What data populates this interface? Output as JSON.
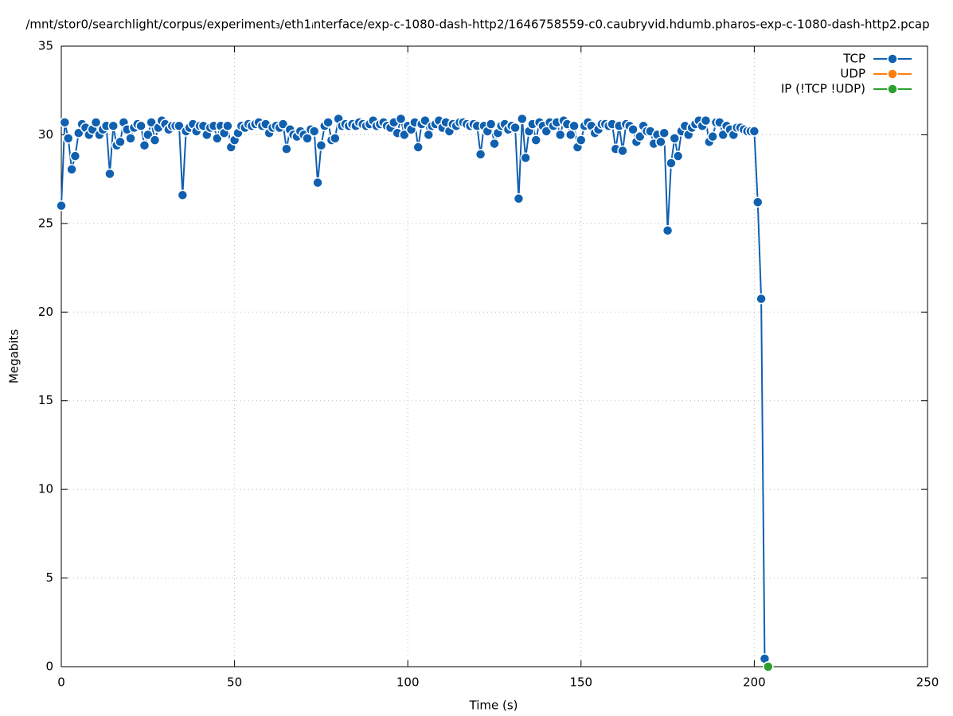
{
  "chart_data": {
    "type": "line",
    "title": "/mnt/stor0/searchlight/corpus/experiment₃/eth1ᵢnterface/exp-c-1080-dash-http2/1646758559-c0.caubryvid.hdumb.pharos-exp-c-1080-dash-http2.pcap",
    "x_label": "Time (s)",
    "y_label": "Megabits",
    "xlim": [
      0,
      250
    ],
    "xticks": [
      0,
      50,
      100,
      150,
      200,
      250
    ],
    "ylim": [
      0,
      35
    ],
    "yticks": [
      0,
      5,
      10,
      15,
      20,
      25,
      30,
      35
    ],
    "grid": true,
    "legend": "top-right",
    "series": [
      {
        "name": "TCP",
        "color": "#1060b0",
        "x": [
          0,
          1,
          2,
          3,
          4,
          5,
          6,
          7,
          8,
          9,
          10,
          11,
          12,
          13,
          14,
          15,
          16,
          17,
          18,
          19,
          20,
          21,
          22,
          23,
          24,
          25,
          26,
          27,
          28,
          29,
          30,
          31,
          32,
          33,
          34,
          35,
          36,
          37,
          38,
          39,
          40,
          41,
          42,
          43,
          44,
          45,
          46,
          47,
          48,
          49,
          50,
          51,
          52,
          53,
          54,
          55,
          56,
          57,
          58,
          59,
          60,
          61,
          62,
          63,
          64,
          65,
          66,
          67,
          68,
          69,
          70,
          71,
          72,
          73,
          74,
          75,
          76,
          77,
          78,
          79,
          80,
          81,
          82,
          83,
          84,
          85,
          86,
          87,
          88,
          89,
          90,
          91,
          92,
          93,
          94,
          95,
          96,
          97,
          98,
          99,
          100,
          101,
          102,
          103,
          104,
          105,
          106,
          107,
          108,
          109,
          110,
          111,
          112,
          113,
          114,
          115,
          116,
          117,
          118,
          119,
          120,
          121,
          122,
          123,
          124,
          125,
          126,
          127,
          128,
          129,
          130,
          131,
          132,
          133,
          134,
          135,
          136,
          137,
          138,
          139,
          140,
          141,
          142,
          143,
          144,
          145,
          146,
          147,
          148,
          149,
          150,
          151,
          152,
          153,
          154,
          155,
          156,
          157,
          158,
          159,
          160,
          161,
          162,
          163,
          164,
          165,
          166,
          167,
          168,
          169,
          170,
          171,
          172,
          173,
          174,
          175,
          176,
          177,
          178,
          179,
          180,
          181,
          182,
          183,
          184,
          185,
          186,
          187,
          188,
          189,
          190,
          191,
          192,
          193,
          194,
          195,
          196,
          197,
          198,
          199,
          200,
          201,
          202,
          203
        ],
        "values": [
          26.0,
          30.7,
          29.8,
          28.05,
          28.8,
          30.1,
          30.6,
          30.4,
          30.0,
          30.3,
          30.7,
          30.0,
          30.3,
          30.5,
          27.8,
          30.5,
          29.4,
          29.6,
          30.7,
          30.3,
          29.8,
          30.4,
          30.6,
          30.5,
          29.4,
          30.0,
          30.7,
          29.7,
          30.4,
          30.8,
          30.6,
          30.3,
          30.5,
          30.5,
          30.5,
          26.6,
          30.2,
          30.4,
          30.6,
          30.2,
          30.5,
          30.5,
          30.0,
          30.4,
          30.5,
          29.8,
          30.5,
          30.1,
          30.5,
          29.3,
          29.7,
          30.1,
          30.5,
          30.4,
          30.6,
          30.5,
          30.6,
          30.7,
          30.5,
          30.6,
          30.1,
          30.4,
          30.5,
          30.4,
          30.6,
          29.2,
          30.3,
          30.0,
          29.9,
          30.2,
          30.0,
          29.8,
          30.3,
          30.2,
          27.3,
          29.4,
          30.5,
          30.7,
          29.7,
          29.8,
          30.9,
          30.5,
          30.6,
          30.5,
          30.6,
          30.5,
          30.7,
          30.6,
          30.5,
          30.6,
          30.8,
          30.5,
          30.6,
          30.7,
          30.5,
          30.4,
          30.7,
          30.1,
          30.9,
          30.0,
          30.5,
          30.3,
          30.7,
          29.3,
          30.6,
          30.8,
          30.0,
          30.5,
          30.6,
          30.8,
          30.4,
          30.7,
          30.2,
          30.6,
          30.5,
          30.7,
          30.7,
          30.6,
          30.5,
          30.6,
          30.5,
          28.9,
          30.5,
          30.2,
          30.6,
          29.5,
          30.1,
          30.5,
          30.6,
          30.3,
          30.5,
          30.4,
          26.4,
          30.9,
          28.7,
          30.2,
          30.6,
          29.7,
          30.7,
          30.5,
          30.2,
          30.7,
          30.5,
          30.7,
          30.0,
          30.8,
          30.6,
          30.0,
          30.5,
          29.3,
          29.7,
          30.5,
          30.7,
          30.5,
          30.1,
          30.3,
          30.6,
          30.6,
          30.5,
          30.6,
          29.2,
          30.5,
          29.1,
          30.6,
          30.5,
          30.3,
          29.6,
          29.9,
          30.5,
          30.2,
          30.2,
          29.5,
          30.0,
          29.6,
          30.1,
          24.6,
          28.4,
          29.8,
          28.8,
          30.2,
          30.5,
          30.0,
          30.4,
          30.6,
          30.8,
          30.5,
          30.8,
          29.6,
          29.9,
          30.7,
          30.7,
          30.0,
          30.5,
          30.3,
          30.0,
          30.4,
          30.4,
          30.3,
          30.2,
          30.2,
          30.2,
          26.2,
          20.75,
          0.45
        ]
      },
      {
        "name": "UDP",
        "color": "#ff7f0e",
        "x": [
          204
        ],
        "values": [
          0
        ]
      },
      {
        "name": "IP (!TCP  !UDP)",
        "color": "#2ca02c",
        "x": [
          204
        ],
        "values": [
          0
        ]
      }
    ]
  }
}
